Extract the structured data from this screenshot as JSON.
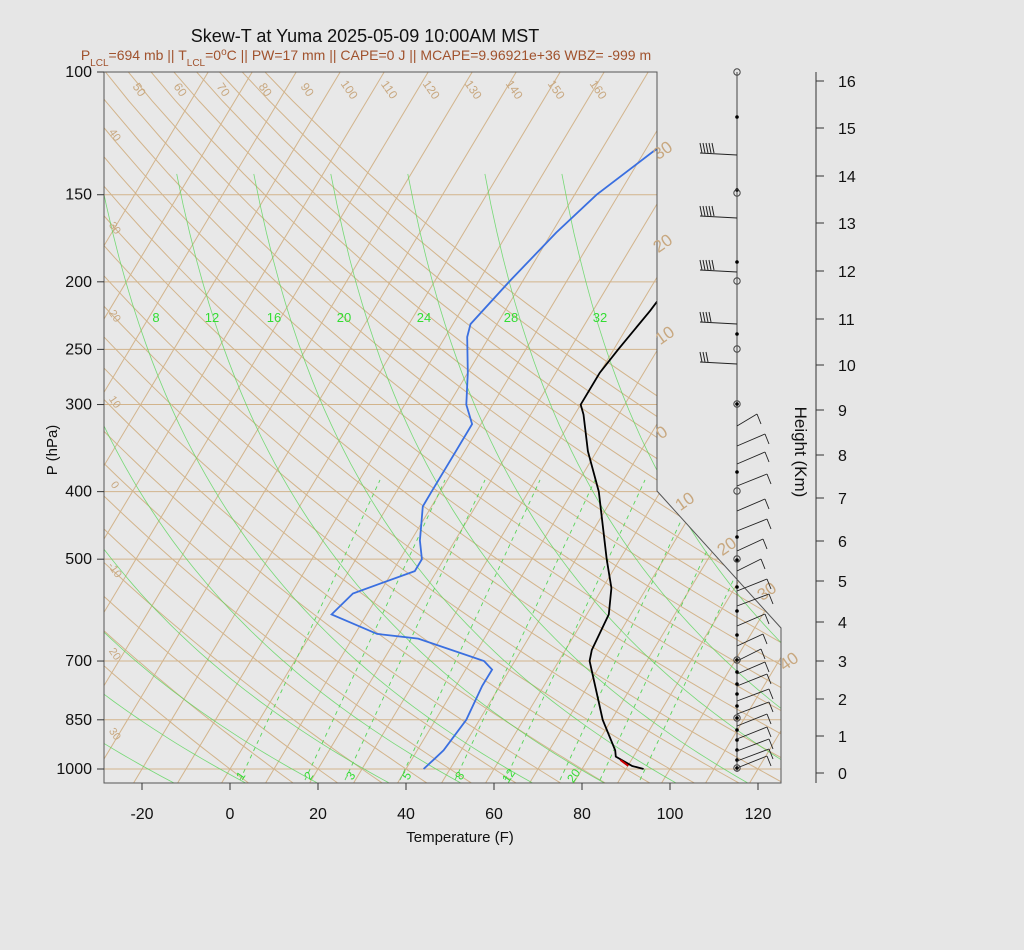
{
  "chart_data": {
    "type": "skew-t",
    "title": "Skew-T at Yuma 2025-05-09 10:00AM MST",
    "subtitle_parts": [
      "P",
      "LCL",
      "=694 mb || T",
      "LCL",
      "=0",
      "o",
      "C || PW=17 mm || CAPE=0 J || MCAPE=9.96921e+36 WBZ= -999 m"
    ],
    "xlabel": "Temperature (F)",
    "ylabel": "P (hPa)",
    "y2label": "Height (Km)",
    "x_ticks": [
      "-20",
      "0",
      "20",
      "40",
      "60",
      "80",
      "100",
      "120"
    ],
    "y_ticks": [
      "100",
      "150",
      "200",
      "250",
      "300",
      "400",
      "500",
      "700",
      "850",
      "1000"
    ],
    "height_ticks": [
      "0",
      "1",
      "2",
      "3",
      "4",
      "5",
      "6",
      "7",
      "8",
      "9",
      "10",
      "11",
      "12",
      "13",
      "14",
      "15",
      "16"
    ],
    "mixing_ratio_labels_top": [
      "8",
      "12",
      "16",
      "20",
      "24",
      "28",
      "32"
    ],
    "mixing_ratio_labels_bottom": [
      "1",
      "2",
      "3",
      "5",
      "8",
      "12",
      "20"
    ],
    "dry_adiabat_labels": [
      "50",
      "60",
      "70",
      "80",
      "90",
      "100",
      "110",
      "120",
      "130",
      "140",
      "150",
      "160"
    ],
    "left_isotherm_labels": [
      "40",
      "30",
      "20",
      "10",
      "0",
      "-10",
      "20",
      "30"
    ],
    "right_isotherm_labels": [
      "30",
      "20",
      "10",
      "0",
      "10",
      "20",
      "30",
      "40"
    ],
    "series": [
      {
        "name": "Temperature",
        "color": "#000000",
        "points_p_tF": [
          [
            1000,
            94
          ],
          [
            990,
            91
          ],
          [
            960,
            86
          ],
          [
            940,
            85
          ],
          [
            850,
            78
          ],
          [
            700,
            67
          ],
          [
            675,
            66
          ],
          [
            600,
            65
          ],
          [
            550,
            62
          ],
          [
            500,
            57
          ],
          [
            400,
            46
          ],
          [
            350,
            38
          ],
          [
            310,
            32
          ],
          [
            300,
            30
          ],
          [
            270,
            30
          ],
          [
            250,
            31
          ],
          [
            220,
            33
          ],
          [
            200,
            34
          ],
          [
            175,
            36
          ],
          [
            150,
            39
          ],
          [
            130,
            42
          ],
          [
            120,
            43
          ],
          [
            110,
            45
          ],
          [
            100,
            47
          ]
        ]
      },
      {
        "name": "Dewpoint",
        "color": "#3a6fe0",
        "points_p_tF": [
          [
            1000,
            44
          ],
          [
            970,
            45
          ],
          [
            940,
            46
          ],
          [
            850,
            47
          ],
          [
            760,
            46
          ],
          [
            720,
            46
          ],
          [
            700,
            43
          ],
          [
            650,
            25
          ],
          [
            640,
            15
          ],
          [
            600,
            2
          ],
          [
            560,
            4
          ],
          [
            520,
            15
          ],
          [
            500,
            15
          ],
          [
            470,
            12
          ],
          [
            420,
            8
          ],
          [
            400,
            8
          ],
          [
            350,
            8
          ],
          [
            320,
            8
          ],
          [
            300,
            4
          ],
          [
            270,
            0
          ],
          [
            240,
            -5
          ],
          [
            230,
            -6
          ],
          [
            200,
            -3
          ],
          [
            170,
            1
          ],
          [
            150,
            5
          ],
          [
            130,
            12
          ],
          [
            115,
            20
          ],
          [
            100,
            30
          ]
        ]
      }
    ],
    "lcl_marker": {
      "color": "#cc0000",
      "p": 980
    }
  }
}
